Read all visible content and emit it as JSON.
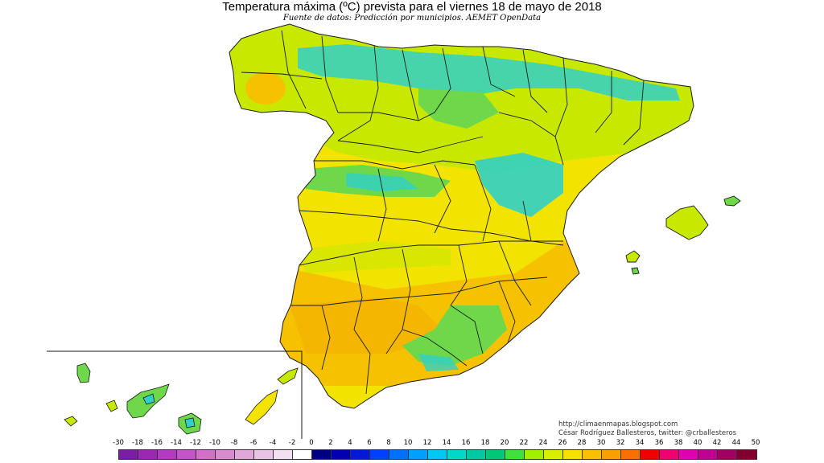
{
  "title": "Temperatura máxima (ºC) prevista para el viernes 18 de mayo de 2018",
  "subtitle": "Fuente de datos: Predicción por municipios. AEMET OpenData",
  "credits": {
    "blog": "http://climaenmapas.blogspot.com",
    "author": "César Rodríguez Ballesteros, twitter: @crballesteros"
  },
  "legend": {
    "ticks": [
      "-30",
      "-18",
      "-16",
      "-14",
      "-12",
      "-10",
      "-8",
      "-6",
      "-4",
      "-2",
      "0",
      "2",
      "4",
      "6",
      "8",
      "10",
      "12",
      "14",
      "16",
      "18",
      "20",
      "22",
      "24",
      "26",
      "28",
      "30",
      "32",
      "34",
      "36",
      "38",
      "40",
      "42",
      "44",
      "50"
    ],
    "colors": [
      "#7a1fa2",
      "#9c27b0",
      "#b23cc0",
      "#c455c8",
      "#d070c8",
      "#d88ccf",
      "#e0a8d8",
      "#e8c4e4",
      "#f2dff0",
      "#ffffff",
      "#000080",
      "#0000b0",
      "#0018d8",
      "#0040ff",
      "#0070ff",
      "#00a0ff",
      "#00c8f0",
      "#00d8c8",
      "#00c8a0",
      "#00c878",
      "#40e040",
      "#a0f000",
      "#d8f000",
      "#f8e000",
      "#f8c000",
      "#f8a000",
      "#f87000",
      "#f00000",
      "#f00070",
      "#e000b0",
      "#c00090",
      "#a00060",
      "#800030"
    ]
  },
  "map": {
    "colors": {
      "yellow": "#f2e400",
      "orange": "#f6c200",
      "yellowgreen": "#c8e800",
      "green": "#6ed84a",
      "cyan": "#30d0c8",
      "border": "#1a1a1a"
    }
  }
}
